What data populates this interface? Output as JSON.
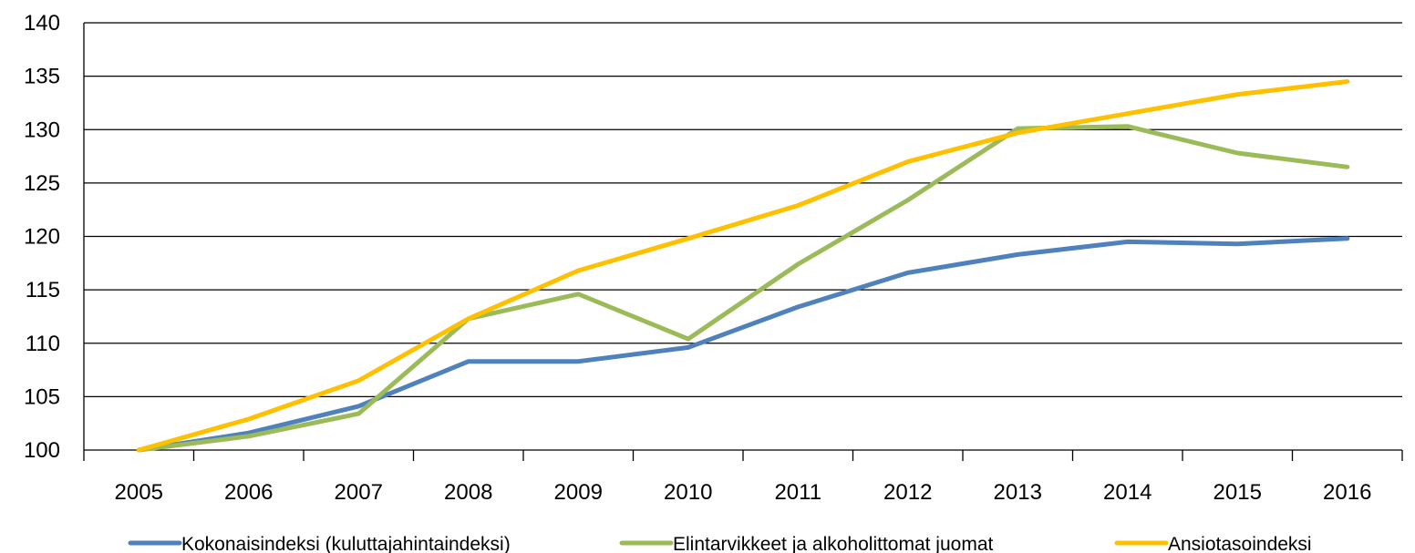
{
  "chart_data": {
    "type": "line",
    "title": "",
    "xlabel": "",
    "ylabel": "",
    "categories": [
      "2005",
      "2006",
      "2007",
      "2008",
      "2009",
      "2010",
      "2011",
      "2012",
      "2013",
      "2014",
      "2015",
      "2016"
    ],
    "ylim": [
      100,
      140
    ],
    "yticks": [
      "100",
      "105",
      "110",
      "115",
      "120",
      "125",
      "130",
      "135",
      "140"
    ],
    "grid": "horizontal",
    "legend_position": "bottom",
    "series": [
      {
        "name": "Kokonaisindeksi (kuluttajahintaindeksi)",
        "color": "#4f81bd",
        "values": [
          100,
          101.6,
          104.1,
          108.3,
          108.3,
          109.6,
          113.4,
          116.6,
          118.3,
          119.5,
          119.3,
          119.8
        ]
      },
      {
        "name": "Elintarvikkeet ja alkoholittomat juomat",
        "color": "#9bbb59",
        "values": [
          100,
          101.3,
          103.4,
          112.3,
          114.6,
          110.4,
          117.4,
          123.4,
          130.1,
          130.3,
          127.8,
          126.5
        ]
      },
      {
        "name": "Ansiotasoindeksi",
        "color": "#ffc000",
        "values": [
          100,
          102.9,
          106.5,
          112.3,
          116.8,
          119.8,
          122.9,
          127.0,
          129.7,
          131.5,
          133.3,
          134.5
        ]
      }
    ]
  }
}
